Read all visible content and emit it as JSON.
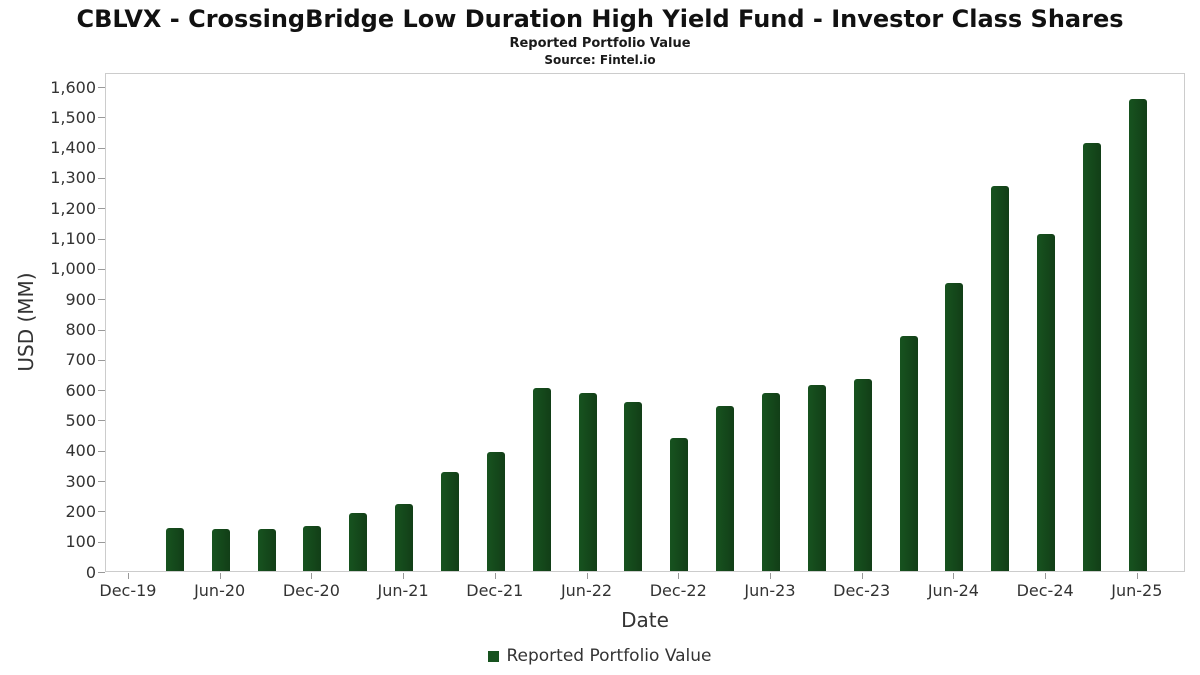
{
  "page": {
    "title": "CBLVX - CrossingBridge Low Duration High Yield Fund - Investor Class Shares",
    "subtitle": "Reported Portfolio Value",
    "source": "Source: Fintel.io"
  },
  "chart_data": {
    "type": "bar",
    "title": "Reported Portfolio Value",
    "xlabel": "Date",
    "ylabel": "USD (MM)",
    "ylim": [
      0,
      1600
    ],
    "ytick_step": 100,
    "y_tick_labels": [
      "0",
      "100",
      "200",
      "300",
      "400",
      "500",
      "600",
      "700",
      "800",
      "900",
      "1,000",
      "1,100",
      "1,200",
      "1,300",
      "1,400",
      "1,500",
      "1,600"
    ],
    "x_tick_labels": [
      "Dec-19",
      "Jun-20",
      "Dec-20",
      "Jun-21",
      "Dec-21",
      "Jun-22",
      "Dec-22",
      "Jun-23",
      "Dec-23",
      "Jun-24",
      "Dec-24",
      "Jun-25"
    ],
    "categories": [
      "Mar-20",
      "Jun-20",
      "Sep-20",
      "Dec-20",
      "Mar-21",
      "Jun-21",
      "Sep-21",
      "Dec-21",
      "Mar-22",
      "Jun-22",
      "Sep-22",
      "Dec-22",
      "Mar-23",
      "Jun-23",
      "Sep-23",
      "Dec-23",
      "Mar-24",
      "Jun-24",
      "Sep-24",
      "Dec-24",
      "Mar-25",
      "Jun-25"
    ],
    "values": [
      142,
      139,
      139,
      148,
      191,
      221,
      327,
      393,
      604,
      587,
      558,
      439,
      545,
      587,
      614,
      634,
      776,
      950,
      1271,
      1112,
      1413,
      1558
    ],
    "legend": {
      "label": "Reported Portfolio Value",
      "position": "bottom"
    },
    "grid": "off",
    "colors": {
      "bar": "#17531f",
      "axis_text": "#333333",
      "tick": "#999999",
      "plot_border": "#cccccc"
    }
  }
}
